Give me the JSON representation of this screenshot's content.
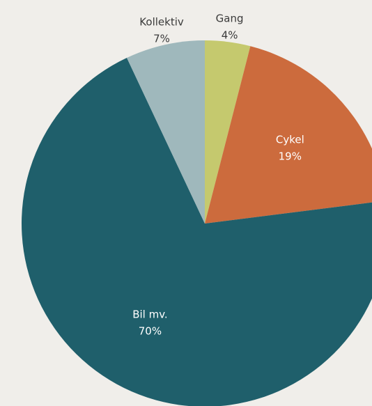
{
  "chart_data": {
    "type": "pie",
    "categories": [
      "Gang",
      "Cykel",
      "Bil mv.",
      "Kollektiv"
    ],
    "values": [
      4,
      19,
      70,
      7
    ],
    "value_labels": [
      "4%",
      "19%",
      "70%",
      "7%"
    ],
    "colors": [
      "#c5c96e",
      "#cc6b3d",
      "#1f5f6b",
      "#9fb8bc"
    ]
  }
}
